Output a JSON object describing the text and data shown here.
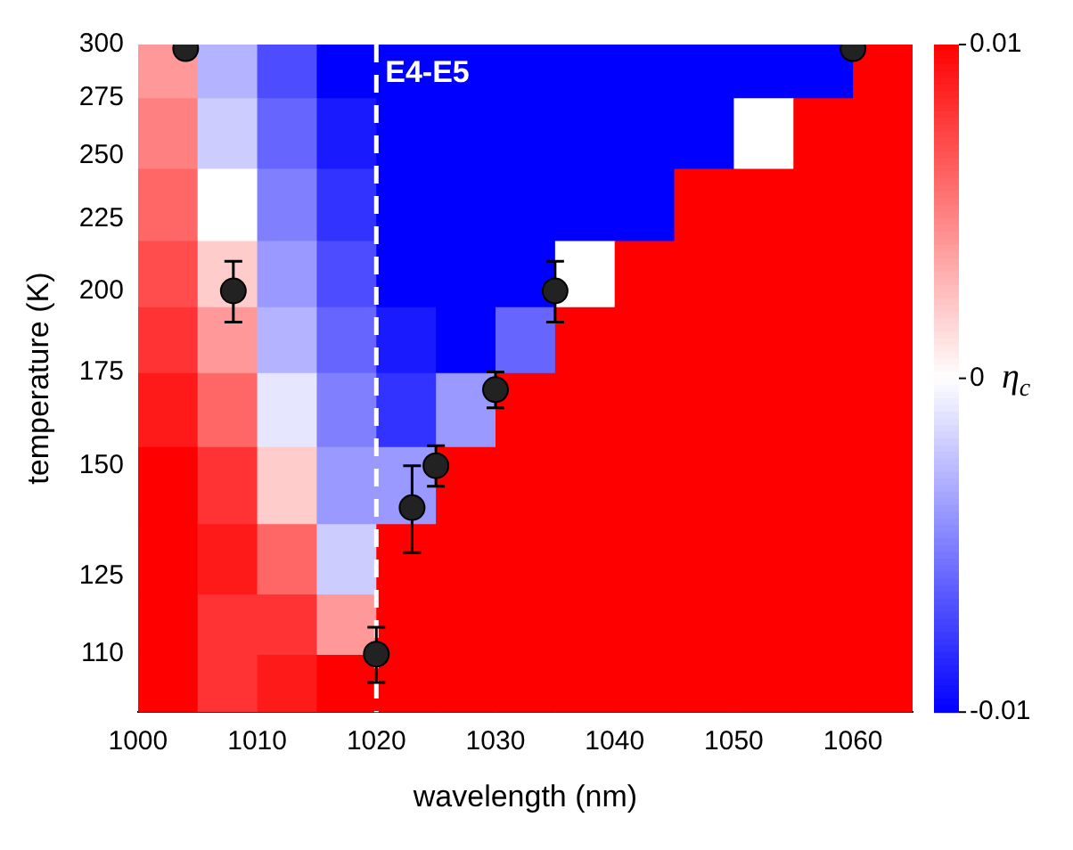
{
  "chart_data": {
    "type": "heatmap",
    "xlabel": "wavelength (nm)",
    "ylabel": "temperature (K)",
    "clabel": "η$_{c}$",
    "xlim": [
      1000,
      1065
    ],
    "xticks": [
      1000,
      1010,
      1020,
      1030,
      1040,
      1050,
      1060
    ],
    "ylim": [
      100,
      300
    ],
    "yticks": [
      110,
      125,
      150,
      175,
      200,
      225,
      250,
      275,
      300
    ],
    "log": "y",
    "clim": [
      -0.01,
      0.01
    ],
    "cticks": [
      -0.01,
      0,
      0.01
    ],
    "x": [
      1002.5,
      1007.5,
      1012.5,
      1017.5,
      1022.5,
      1027.5,
      1032.5,
      1037.5,
      1042.5,
      1047.5,
      1052.5,
      1057.5,
      1062.5
    ],
    "y": [
      290,
      260,
      230,
      205,
      185,
      165,
      145,
      128,
      115,
      105
    ],
    "cells": [
      [
        0.004,
        -0.003,
        -0.007,
        -0.01,
        -0.01,
        -0.01,
        -0.01,
        -0.01,
        -0.01,
        -0.01,
        -0.01,
        -0.01,
        0.01
      ],
      [
        0.005,
        -0.002,
        -0.006,
        -0.009,
        -0.01,
        -0.01,
        -0.01,
        -0.01,
        -0.01,
        -0.01,
        0,
        0.01,
        0.01
      ],
      [
        0.006,
        0,
        -0.005,
        -0.008,
        -0.01,
        -0.01,
        -0.01,
        -0.01,
        -0.01,
        0.01,
        0.01,
        0.01,
        0.01
      ],
      [
        0.007,
        0.002,
        -0.004,
        -0.007,
        -0.01,
        -0.01,
        -0.01,
        0,
        0.01,
        0.01,
        0.01,
        0.01,
        0.01
      ],
      [
        0.008,
        0.004,
        -0.003,
        -0.006,
        -0.009,
        -0.01,
        -0.006,
        0.01,
        0.01,
        0.01,
        0.01,
        0.01,
        0.01
      ],
      [
        0.009,
        0.006,
        -0.001,
        -0.005,
        -0.008,
        -0.004,
        0.01,
        0.01,
        0.01,
        0.01,
        0.01,
        0.01,
        0.01
      ],
      [
        0.01,
        0.008,
        0.002,
        -0.004,
        -0.004,
        0.01,
        0.01,
        0.01,
        0.01,
        0.01,
        0.01,
        0.01,
        0.01
      ],
      [
        0.01,
        0.009,
        0.006,
        -0.002,
        0.01,
        0.01,
        0.01,
        0.01,
        0.01,
        0.01,
        0.01,
        0.01,
        0.01
      ],
      [
        0.01,
        0.008,
        0.008,
        0.004,
        0.01,
        0.01,
        0.01,
        0.01,
        0.01,
        0.01,
        0.01,
        0.01,
        0.01
      ],
      [
        0.01,
        0.008,
        0.009,
        0.01,
        0.01,
        0.01,
        0.01,
        0.01,
        0.01,
        0.01,
        0.01,
        0.01,
        0.01
      ]
    ],
    "ref_lines": [
      {
        "axis": "x",
        "value": 1020,
        "label": "E4-E5",
        "color": "#ffffff",
        "line_style": "dashed"
      }
    ],
    "series": [
      {
        "type": "scatter",
        "color": "#222222",
        "marker": "circle",
        "x": [
          1004,
          1008,
          1020,
          1023,
          1025,
          1030,
          1035,
          1060
        ],
        "values": [
          298,
          200,
          110,
          140,
          150,
          170,
          200,
          298
        ],
        "errors": [
          null,
          10,
          5,
          10,
          5,
          5,
          10,
          null
        ]
      }
    ]
  }
}
